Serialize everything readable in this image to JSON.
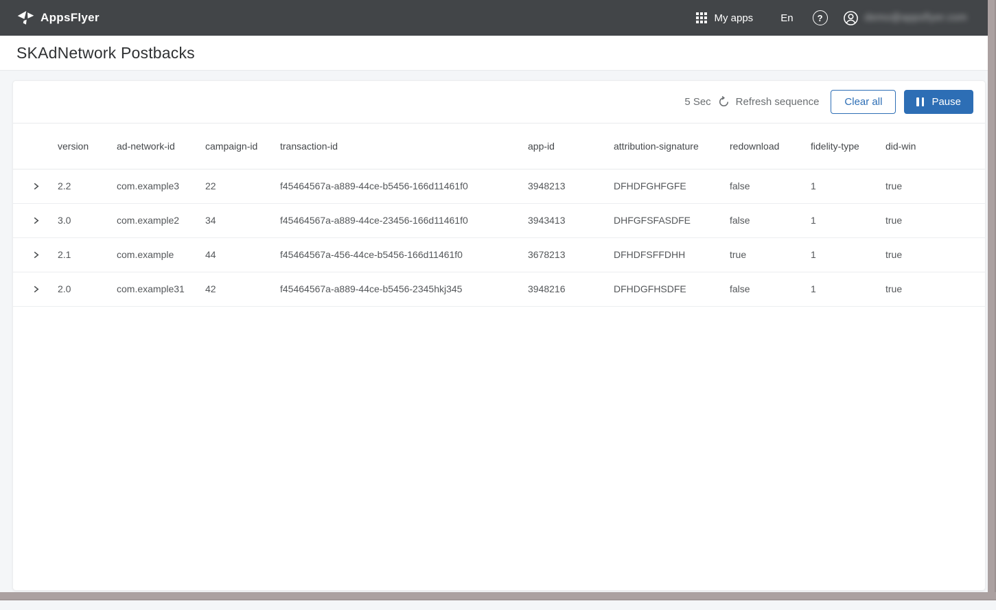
{
  "navbar": {
    "brand": "AppsFlyer",
    "my_apps_label": "My apps",
    "language_label": "En",
    "help_glyph": "?",
    "user_email": "demo@appsflyer.com",
    "user_email_blurred": true
  },
  "page": {
    "title": "SKAdNetwork Postbacks"
  },
  "toolbar": {
    "refresh_interval": "5 Sec",
    "refresh_sequence_label": "Refresh sequence",
    "clear_all_label": "Clear all",
    "pause_label": "Pause"
  },
  "table": {
    "columns": [
      "version",
      "ad-network-id",
      "campaign-id",
      "transaction-id",
      "app-id",
      "attribution-signature",
      "redownload",
      "fidelity-type",
      "did-win"
    ],
    "rows": [
      [
        "2.2",
        "com.example3",
        "22",
        "f45464567a-a889-44ce-b5456-166d11461f0",
        "3948213",
        "DFHDFGHFGFE",
        "false",
        "1",
        "true"
      ],
      [
        "3.0",
        "com.example2",
        "34",
        "f45464567a-a889-44ce-23456-166d11461f0",
        "3943413",
        "DHFGFSFASDFE",
        "false",
        "1",
        "true"
      ],
      [
        "2.1",
        "com.example",
        "44",
        "f45464567a-456-44ce-b5456-166d11461f0",
        "3678213",
        "DFHDFSFFDHH",
        "true",
        "1",
        "true"
      ],
      [
        "2.0",
        "com.example31",
        "42",
        "f45464567a-a889-44ce-b5456-2345hkj345",
        "3948216",
        "DFHDGFHSDFE",
        "false",
        "1",
        "true"
      ]
    ]
  },
  "colors": {
    "accent_blue": "#2d6eb5",
    "navbar_bg": "#424548",
    "page_bg": "#f4f6f8",
    "scrollbar": "#aba1a1",
    "row_border": "#eceef0"
  }
}
